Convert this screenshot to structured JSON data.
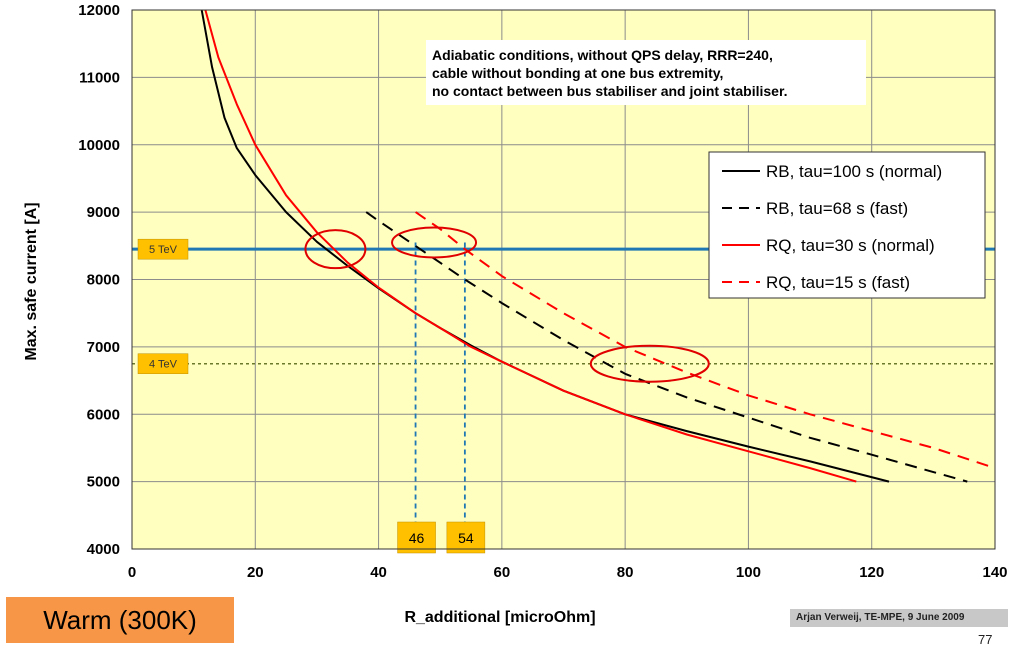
{
  "chart_data": {
    "type": "line",
    "xlabel": "R_additional [microOhm]",
    "ylabel": "Max. safe current [A]",
    "xlim": [
      0,
      140
    ],
    "ylim": [
      4000,
      12000
    ],
    "x_ticks": [
      0,
      20,
      40,
      60,
      80,
      100,
      120,
      140
    ],
    "y_ticks": [
      4000,
      5000,
      6000,
      7000,
      8000,
      9000,
      10000,
      11000,
      12000
    ],
    "grid": true,
    "legend_position": "top-right",
    "annotation": [
      "Adiabatic conditions, without QPS delay, RRR=240,",
      "cable without bonding at one bus extremity,",
      "no contact between bus stabiliser and joint stabiliser."
    ],
    "series": [
      {
        "name": "RB, tau=100 s (normal)",
        "color": "#000000",
        "dash": "solid",
        "x": [
          11.3,
          13,
          15,
          17,
          20,
          25,
          30,
          35,
          40,
          46,
          50,
          55,
          60,
          70,
          80,
          90,
          100,
          110,
          122.8
        ],
        "y": [
          12000,
          11150,
          10400,
          9950,
          9550,
          9000,
          8560,
          8200,
          7870,
          7500,
          7280,
          7020,
          6780,
          6350,
          6000,
          5750,
          5520,
          5300,
          5000
        ]
      },
      {
        "name": "RB, tau=68 s (fast)",
        "color": "#000000",
        "dash": "dashed",
        "x": [
          38,
          40,
          45,
          50,
          54,
          60,
          70,
          80,
          90,
          100,
          110,
          120,
          135.5
        ],
        "y": [
          9000,
          8870,
          8560,
          8250,
          8000,
          7650,
          7100,
          6600,
          6250,
          5950,
          5650,
          5400,
          5000
        ]
      },
      {
        "name": "RQ, tau=30 s (normal)",
        "color": "#ff0000",
        "dash": "solid",
        "x": [
          11.9,
          14,
          17,
          20,
          25,
          30,
          35,
          40,
          46,
          50,
          55,
          60,
          70,
          80,
          90,
          100,
          110,
          117.5
        ],
        "y": [
          12000,
          11300,
          10600,
          10000,
          9250,
          8700,
          8250,
          7880,
          7500,
          7280,
          7000,
          6780,
          6350,
          6000,
          5700,
          5450,
          5200,
          5000
        ]
      },
      {
        "name": "RQ, tau=15 s (fast)",
        "color": "#ff0000",
        "dash": "dashed",
        "x": [
          46,
          50,
          54,
          60,
          70,
          80,
          90,
          100,
          110,
          120,
          130,
          140
        ],
        "y": [
          9000,
          8750,
          8450,
          8050,
          7500,
          7000,
          6620,
          6280,
          6000,
          5750,
          5500,
          5200
        ]
      }
    ],
    "reference_lines": [
      {
        "label": "5 TeV",
        "y": 8450,
        "color": "#1f77b4",
        "style": "solid"
      },
      {
        "label": "4 TeV",
        "y": 6750,
        "color": "#6b7a2a",
        "style": "dotted"
      }
    ],
    "vertical_markers": [
      {
        "label": "46",
        "x": 46
      },
      {
        "label": "54",
        "x": 54
      }
    ],
    "circled_regions": [
      {
        "x": 33,
        "y": 8450
      },
      {
        "x": 49,
        "y": 8550
      },
      {
        "x": 84,
        "y": 6750
      }
    ]
  },
  "footer": {
    "condition_label": "Warm (300K)",
    "credit": "Arjan Verweij, TE-MPE, 9 June 2009",
    "page_number": "77"
  }
}
